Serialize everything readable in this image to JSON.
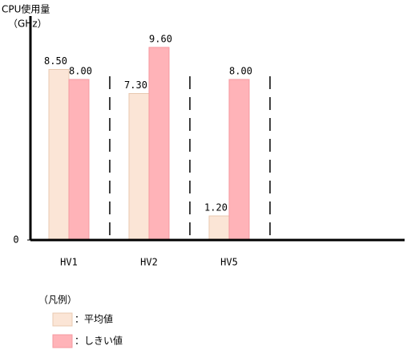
{
  "chart_data": {
    "type": "bar",
    "y_label_line1": "CPU使用量",
    "y_label_line2": "（GHz）",
    "categories": [
      "HV1",
      "HV2",
      "HV5"
    ],
    "series": [
      {
        "name": "：平均値",
        "color": "#fbe5d6",
        "values": [
          8.5,
          7.3,
          1.2
        ],
        "value_labels": [
          "8.50",
          "7.30",
          "1.20"
        ]
      },
      {
        "name": "：しきい値",
        "color": "#ffb3b8",
        "values": [
          8,
          9.6,
          8
        ],
        "value_labels": [
          "8.00",
          "9.60",
          "8.00"
        ]
      }
    ],
    "ylim": [
      0,
      11
    ],
    "yticks": [
      0
    ],
    "legend_title": "（凡例）",
    "legend": "bottom-left"
  }
}
